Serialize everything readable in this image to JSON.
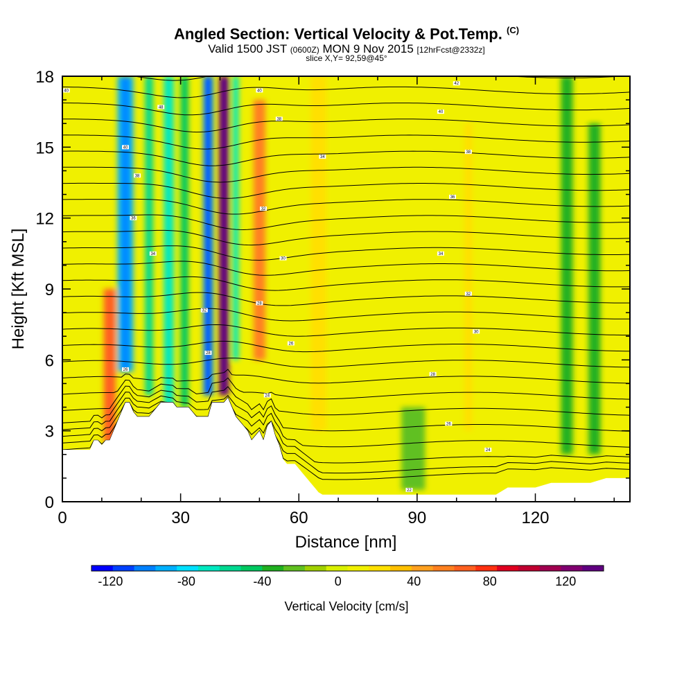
{
  "header": {
    "title": "Angled Section: Vertical Velocity & Pot.Temp.",
    "title_suffix": "(C)",
    "valid_prefix": "Valid 1500 JST",
    "valid_utc": "(0600Z)",
    "valid_date": "MON 9 Nov 2015",
    "forecast_tag": "[12hrFcst@2332z]",
    "slice": "slice X,Y= 92,59@45°"
  },
  "chart_data": {
    "type": "heatmap",
    "title": "Angled Section: Vertical Velocity & Pot.Temp.",
    "xlabel": "Distance [nm]",
    "ylabel": "Height [Kft MSL]",
    "xlim": [
      0,
      144
    ],
    "ylim": [
      0,
      18
    ],
    "x_ticks": [
      0,
      30,
      60,
      90,
      120
    ],
    "y_ticks": [
      0,
      3,
      6,
      9,
      12,
      15,
      18
    ],
    "colorbar": {
      "label": "Vertical Velocity [cm/s]",
      "ticks": [
        -120,
        -80,
        -40,
        0,
        40,
        80,
        120
      ],
      "range": [
        -130,
        140
      ],
      "colors": [
        "#0000ff",
        "#0040ff",
        "#0080ff",
        "#00b0ff",
        "#00e0ff",
        "#00e8c0",
        "#00d890",
        "#00c860",
        "#20b020",
        "#60c020",
        "#a0d000",
        "#d8f000",
        "#f0f000",
        "#ffe000",
        "#ffc000",
        "#ffa020",
        "#ff8020",
        "#ff6020",
        "#ff3010",
        "#e00020",
        "#c00030",
        "#a00050",
        "#800070",
        "#600080"
      ]
    },
    "velocity_features": [
      {
        "x": 16,
        "bottom": 5.5,
        "top": 18,
        "w": -95,
        "width": 4
      },
      {
        "x": 22,
        "bottom": 4.5,
        "top": 18,
        "w": -55,
        "width": 2
      },
      {
        "x": 27,
        "bottom": 4.0,
        "top": 18,
        "w": -70,
        "width": 2.5
      },
      {
        "x": 31,
        "bottom": 4.0,
        "top": 18,
        "w": -50,
        "width": 2
      },
      {
        "x": 37,
        "bottom": 4.5,
        "top": 18,
        "w": -105,
        "width": 2.5
      },
      {
        "x": 41,
        "bottom": 4.5,
        "top": 18,
        "w": 135,
        "width": 2.5
      },
      {
        "x": 44,
        "bottom": 6.0,
        "top": 18,
        "w": -65,
        "width": 1.5
      },
      {
        "x": 50,
        "bottom": 6.0,
        "top": 17,
        "w": 55,
        "width": 3
      },
      {
        "x": 12,
        "bottom": 2.5,
        "top": 9,
        "w": 65,
        "width": 3
      },
      {
        "x": 65,
        "bottom": 3.0,
        "top": 18,
        "w": 20,
        "width": 4
      },
      {
        "x": 100,
        "bottom": 3.0,
        "top": 18,
        "w": 15,
        "width": 3
      },
      {
        "x": 103,
        "bottom": 3.0,
        "top": 16,
        "w": 25,
        "width": 2
      },
      {
        "x": 128,
        "bottom": 2.0,
        "top": 18,
        "w": -35,
        "width": 3
      },
      {
        "x": 135,
        "bottom": 2.0,
        "top": 16,
        "w": -30,
        "width": 3
      },
      {
        "x": 89,
        "bottom": 0.5,
        "top": 4,
        "w": -20,
        "width": 6
      }
    ],
    "terrain_kft": [
      [
        0,
        2.2
      ],
      [
        2,
        2.2
      ],
      [
        4,
        2.2
      ],
      [
        6,
        2.2
      ],
      [
        7,
        2.2
      ],
      [
        8,
        2.6
      ],
      [
        9,
        2.6
      ],
      [
        10,
        2.4
      ],
      [
        11,
        2.6
      ],
      [
        12,
        2.6
      ],
      [
        13,
        3.0
      ],
      [
        14,
        3.4
      ],
      [
        15,
        3.8
      ],
      [
        16,
        4.2
      ],
      [
        17,
        4.2
      ],
      [
        18,
        3.8
      ],
      [
        19,
        3.6
      ],
      [
        20,
        3.6
      ],
      [
        21,
        3.6
      ],
      [
        22,
        3.6
      ],
      [
        23,
        3.8
      ],
      [
        24,
        4.0
      ],
      [
        25,
        4.2
      ],
      [
        26,
        4.2
      ],
      [
        27,
        4.2
      ],
      [
        28,
        4.2
      ],
      [
        29,
        4.0
      ],
      [
        30,
        4.0
      ],
      [
        31,
        4.0
      ],
      [
        32,
        4.0
      ],
      [
        33,
        3.8
      ],
      [
        34,
        3.6
      ],
      [
        35,
        3.6
      ],
      [
        36,
        3.6
      ],
      [
        37,
        3.6
      ],
      [
        38,
        4.2
      ],
      [
        39,
        4.2
      ],
      [
        40,
        4.2
      ],
      [
        41,
        4.2
      ],
      [
        42,
        4.4
      ],
      [
        43,
        4.0
      ],
      [
        44,
        3.6
      ],
      [
        45,
        3.4
      ],
      [
        46,
        3.2
      ],
      [
        47,
        3.0
      ],
      [
        48,
        2.6
      ],
      [
        49,
        2.8
      ],
      [
        50,
        3.0
      ],
      [
        51,
        2.6
      ],
      [
        52,
        3.2
      ],
      [
        53,
        3.4
      ],
      [
        54,
        2.8
      ],
      [
        55,
        2.4
      ],
      [
        56,
        1.8
      ],
      [
        57,
        1.6
      ],
      [
        58,
        1.6
      ],
      [
        59,
        1.6
      ],
      [
        60,
        1.4
      ],
      [
        61,
        1.2
      ],
      [
        62,
        1.0
      ],
      [
        63,
        0.8
      ],
      [
        64,
        0.6
      ],
      [
        65,
        0.4
      ],
      [
        66,
        0.3
      ],
      [
        70,
        0.3
      ],
      [
        80,
        0.3
      ],
      [
        90,
        0.3
      ],
      [
        100,
        0.3
      ],
      [
        110,
        0.3
      ],
      [
        113,
        0.6
      ],
      [
        115,
        0.6
      ],
      [
        120,
        0.6
      ],
      [
        124,
        0.8
      ],
      [
        128,
        0.8
      ],
      [
        134,
        0.8
      ],
      [
        138,
        1.0
      ],
      [
        144,
        1.0
      ]
    ],
    "theta_labels": [
      {
        "text": "40",
        "x": 1,
        "y": 17.4
      },
      {
        "text": "48",
        "x": 25,
        "y": 16.7
      },
      {
        "text": "40",
        "x": 16,
        "y": 15.0
      },
      {
        "text": "38",
        "x": 19,
        "y": 13.8
      },
      {
        "text": "36",
        "x": 18,
        "y": 12.0
      },
      {
        "text": "34",
        "x": 23,
        "y": 10.5
      },
      {
        "text": "32",
        "x": 36,
        "y": 8.1
      },
      {
        "text": "28",
        "x": 37,
        "y": 6.3
      },
      {
        "text": "26",
        "x": 16,
        "y": 5.6
      },
      {
        "text": "40",
        "x": 50,
        "y": 17.4
      },
      {
        "text": "38",
        "x": 55,
        "y": 16.2
      },
      {
        "text": "34",
        "x": 66,
        "y": 14.6
      },
      {
        "text": "32",
        "x": 51,
        "y": 12.4
      },
      {
        "text": "30",
        "x": 56,
        "y": 10.3
      },
      {
        "text": "28",
        "x": 50,
        "y": 8.4
      },
      {
        "text": "26",
        "x": 58,
        "y": 6.7
      },
      {
        "text": "24",
        "x": 52,
        "y": 4.5
      },
      {
        "text": "42",
        "x": 100,
        "y": 17.7
      },
      {
        "text": "40",
        "x": 96,
        "y": 16.5
      },
      {
        "text": "38",
        "x": 103,
        "y": 14.8
      },
      {
        "text": "36",
        "x": 99,
        "y": 12.9
      },
      {
        "text": "34",
        "x": 96,
        "y": 10.5
      },
      {
        "text": "32",
        "x": 103,
        "y": 8.8
      },
      {
        "text": "30",
        "x": 105,
        "y": 7.2
      },
      {
        "text": "28",
        "x": 94,
        "y": 5.4
      },
      {
        "text": "26",
        "x": 98,
        "y": 3.3
      },
      {
        "text": "24",
        "x": 108,
        "y": 2.2
      },
      {
        "text": "22",
        "x": 88,
        "y": 0.5
      }
    ]
  }
}
